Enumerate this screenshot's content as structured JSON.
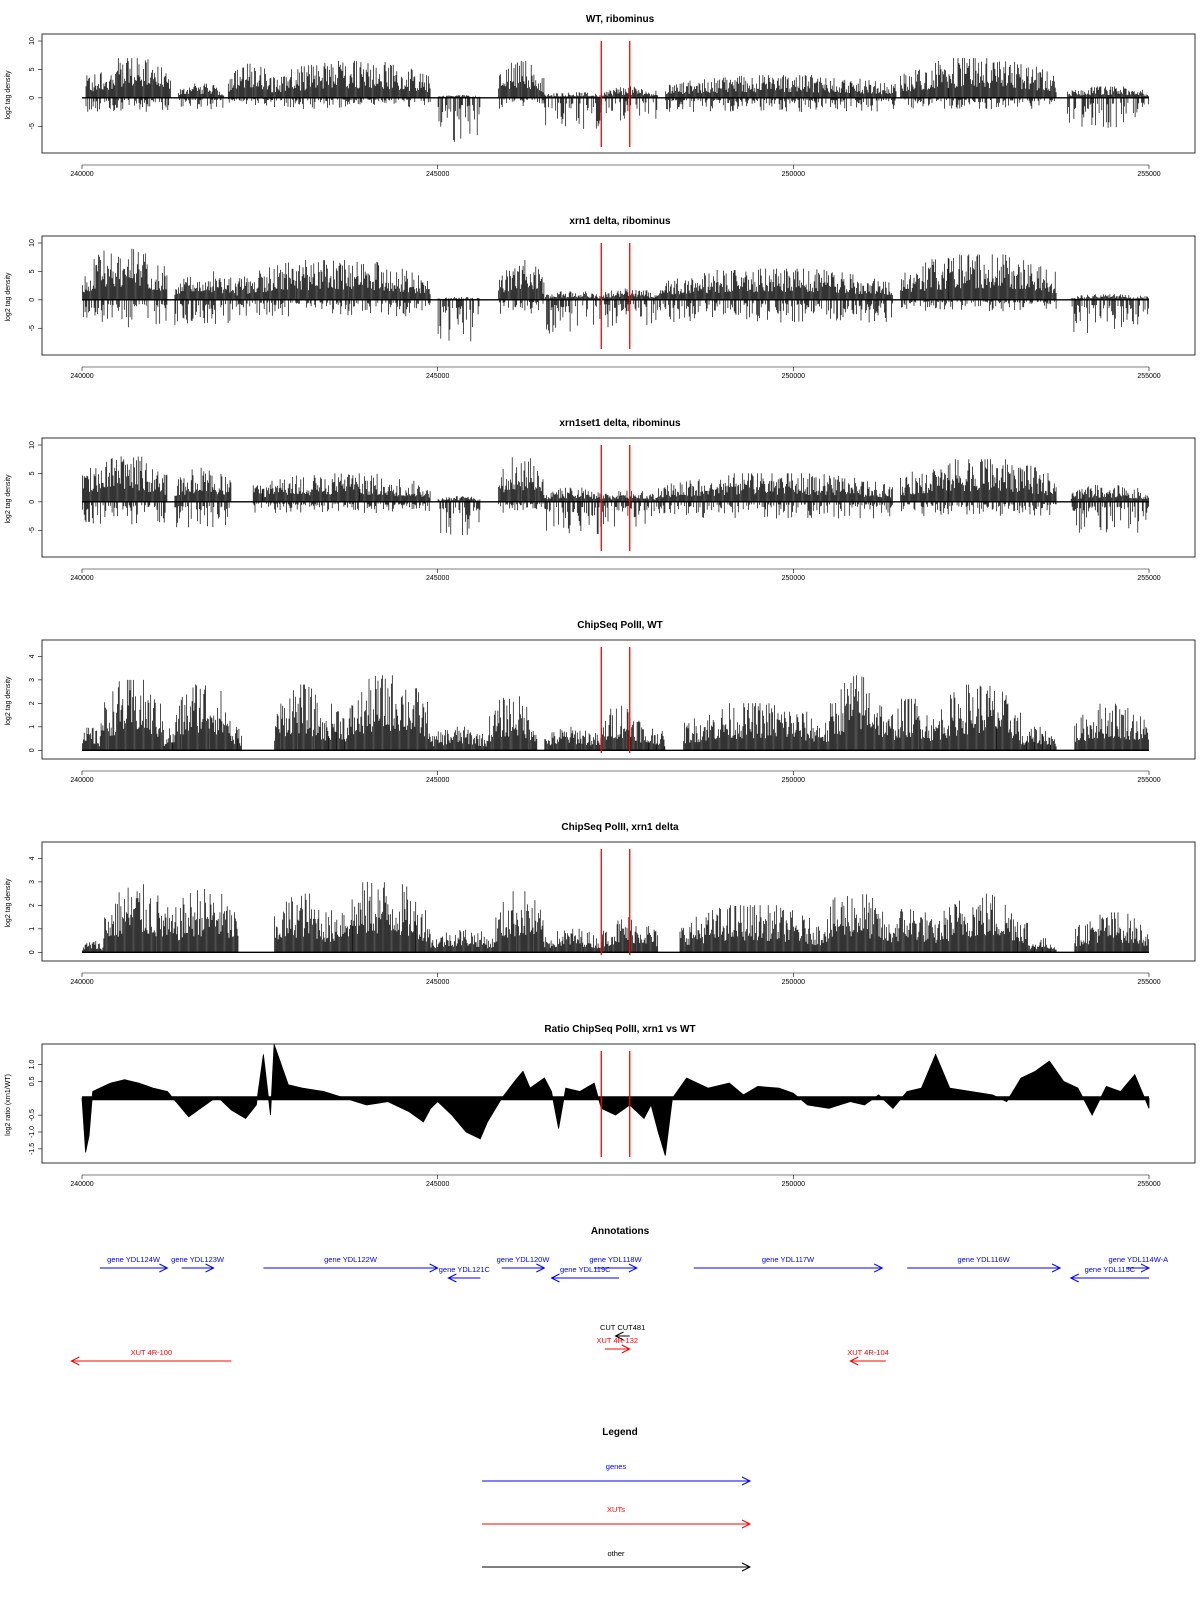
{
  "colors": {
    "gene": "#0000ff",
    "xut": "#ff0000",
    "other": "#000000",
    "marker": "#ff0000",
    "signal": "#000000"
  },
  "xaxis": {
    "range": [
      240000,
      255000
    ],
    "ticks": [
      240000,
      245000,
      250000,
      255000
    ]
  },
  "markers": [
    247300,
    247700
  ],
  "chart_data": [
    {
      "type": "bar",
      "title": "WT, ribominus",
      "ylabel": "log2 tag density",
      "ylim": [
        -9,
        10
      ],
      "yticks": [
        -5,
        0,
        5,
        10
      ],
      "xlim": [
        240000,
        255000
      ],
      "segments": [
        {
          "x": [
            240050,
            240150
          ],
          "pos": 4.5,
          "neg": -3.0
        },
        {
          "x": [
            240150,
            241250
          ],
          "pos": 7.0,
          "neg": -2.5
        },
        {
          "x": [
            241350,
            242000
          ],
          "pos": 2.5,
          "neg": -2.0
        },
        {
          "x": [
            242050,
            242700
          ],
          "pos": 6.0,
          "neg": -1.5
        },
        {
          "x": [
            242700,
            244900
          ],
          "pos": 6.5,
          "neg": -2.0
        },
        {
          "x": [
            245000,
            245600
          ],
          "pos": 0.5,
          "neg": -8.5
        },
        {
          "x": [
            245850,
            246500
          ],
          "pos": 6.5,
          "neg": -2.0
        },
        {
          "x": [
            246500,
            247300
          ],
          "pos": 1.0,
          "neg": -5.5
        },
        {
          "x": [
            247300,
            248100
          ],
          "pos": 2.0,
          "neg": -4.0
        },
        {
          "x": [
            248200,
            251450
          ],
          "pos": 4.0,
          "neg": -2.5
        },
        {
          "x": [
            251500,
            253700
          ],
          "pos": 7.0,
          "neg": -2.0
        },
        {
          "x": [
            253850,
            255000
          ],
          "pos": 2.0,
          "neg": -5.5
        }
      ]
    },
    {
      "type": "bar",
      "title": "xrn1 delta, ribominus",
      "ylabel": "log2 tag density",
      "ylim": [
        -9,
        10
      ],
      "yticks": [
        -5,
        0,
        5,
        10
      ],
      "xlim": [
        240000,
        255000
      ],
      "segments": [
        {
          "x": [
            240000,
            241200
          ],
          "pos": 9.0,
          "neg": -5.0
        },
        {
          "x": [
            241300,
            242200
          ],
          "pos": 5.0,
          "neg": -4.5
        },
        {
          "x": [
            242200,
            244900
          ],
          "pos": 7.0,
          "neg": -3.0
        },
        {
          "x": [
            245000,
            245600
          ],
          "pos": 0.5,
          "neg": -7.5
        },
        {
          "x": [
            245850,
            246500
          ],
          "pos": 7.0,
          "neg": -2.5
        },
        {
          "x": [
            246500,
            247300
          ],
          "pos": 1.5,
          "neg": -6.0
        },
        {
          "x": [
            247300,
            248100
          ],
          "pos": 2.0,
          "neg": -5.0
        },
        {
          "x": [
            248100,
            251400
          ],
          "pos": 5.5,
          "neg": -4.0
        },
        {
          "x": [
            251500,
            253700
          ],
          "pos": 8.0,
          "neg": -2.0
        },
        {
          "x": [
            253900,
            255000
          ],
          "pos": 1.0,
          "neg": -6.0
        }
      ]
    },
    {
      "type": "bar",
      "title": "xrn1set1 delta, ribominus",
      "ylabel": "log2 tag density",
      "ylim": [
        -9,
        10
      ],
      "yticks": [
        -5,
        0,
        5,
        10
      ],
      "xlim": [
        240000,
        255000
      ],
      "segments": [
        {
          "x": [
            240000,
            241200
          ],
          "pos": 8.0,
          "neg": -4.0
        },
        {
          "x": [
            241300,
            242100
          ],
          "pos": 6.0,
          "neg": -5.0
        },
        {
          "x": [
            242400,
            244900
          ],
          "pos": 5.0,
          "neg": -2.0
        },
        {
          "x": [
            245000,
            245600
          ],
          "pos": 1.0,
          "neg": -6.5
        },
        {
          "x": [
            245850,
            246500
          ],
          "pos": 8.0,
          "neg": -2.0
        },
        {
          "x": [
            246500,
            247300
          ],
          "pos": 2.5,
          "neg": -6.0
        },
        {
          "x": [
            247300,
            248100
          ],
          "pos": 2.0,
          "neg": -4.5
        },
        {
          "x": [
            248100,
            251400
          ],
          "pos": 5.0,
          "neg": -3.0
        },
        {
          "x": [
            251500,
            253700
          ],
          "pos": 7.5,
          "neg": -2.5
        },
        {
          "x": [
            253900,
            255000
          ],
          "pos": 3.0,
          "neg": -5.5
        }
      ]
    },
    {
      "type": "bar",
      "title": "ChipSeq PolII, WT",
      "ylabel": "log2 tag density",
      "ylim": [
        -0.2,
        4.4
      ],
      "yticks": [
        0,
        1,
        2,
        3,
        4
      ],
      "xlim": [
        240000,
        255000
      ],
      "segments": [
        {
          "x": [
            240000,
            240250
          ],
          "pos": 1.0
        },
        {
          "x": [
            240250,
            241150
          ],
          "pos": 3.0
        },
        {
          "x": [
            241150,
            241300
          ],
          "pos": 1.0
        },
        {
          "x": [
            241300,
            242100
          ],
          "pos": 3.0
        },
        {
          "x": [
            242100,
            242250
          ],
          "pos": 1.0
        },
        {
          "x": [
            242700,
            243400
          ],
          "pos": 2.8
        },
        {
          "x": [
            243400,
            243750
          ],
          "pos": 2.0
        },
        {
          "x": [
            243750,
            244900
          ],
          "pos": 3.2
        },
        {
          "x": [
            244900,
            245700
          ],
          "pos": 1.0
        },
        {
          "x": [
            245700,
            246400
          ],
          "pos": 2.3
        },
        {
          "x": [
            246500,
            247300
          ],
          "pos": 1.0
        },
        {
          "x": [
            247300,
            247900
          ],
          "pos": 2.0
        },
        {
          "x": [
            247900,
            248200
          ],
          "pos": 1.0
        },
        {
          "x": [
            248450,
            250500
          ],
          "pos": 2.0
        },
        {
          "x": [
            250500,
            251300
          ],
          "pos": 3.2
        },
        {
          "x": [
            251300,
            252000
          ],
          "pos": 2.2
        },
        {
          "x": [
            252000,
            253200
          ],
          "pos": 2.8
        },
        {
          "x": [
            253200,
            253700
          ],
          "pos": 1.0
        },
        {
          "x": [
            253950,
            255000
          ],
          "pos": 2.0
        }
      ]
    },
    {
      "type": "bar",
      "title": "ChipSeq PolII, xrn1 delta",
      "ylabel": "log2 tag density",
      "ylim": [
        -0.2,
        4.4
      ],
      "yticks": [
        0,
        1,
        2,
        3,
        4
      ],
      "xlim": [
        240000,
        255000
      ],
      "segments": [
        {
          "x": [
            240000,
            240300
          ],
          "pos": 0.5
        },
        {
          "x": [
            240300,
            241250
          ],
          "pos": 2.9
        },
        {
          "x": [
            241250,
            242200
          ],
          "pos": 2.7
        },
        {
          "x": [
            242700,
            243500
          ],
          "pos": 2.5
        },
        {
          "x": [
            243500,
            244900
          ],
          "pos": 3.0
        },
        {
          "x": [
            244900,
            245800
          ],
          "pos": 1.0
        },
        {
          "x": [
            245800,
            246500
          ],
          "pos": 2.6
        },
        {
          "x": [
            246500,
            247300
          ],
          "pos": 1.0
        },
        {
          "x": [
            247300,
            248100
          ],
          "pos": 1.5
        },
        {
          "x": [
            248400,
            250400
          ],
          "pos": 2.0
        },
        {
          "x": [
            250400,
            251300
          ],
          "pos": 2.6
        },
        {
          "x": [
            251300,
            252000
          ],
          "pos": 2.0
        },
        {
          "x": [
            252000,
            253300
          ],
          "pos": 2.5
        },
        {
          "x": [
            253300,
            253700
          ],
          "pos": 0.6
        },
        {
          "x": [
            253950,
            255000
          ],
          "pos": 1.7
        }
      ]
    },
    {
      "type": "area",
      "title": "Ratio ChipSeq PolII, xrn1 vs WT",
      "ylabel": "log2 ratio (xrn1/WT)",
      "ylim": [
        -1.8,
        1.4
      ],
      "yticks": [
        -1.5,
        -1.0,
        -0.5,
        0.5,
        1.0
      ],
      "ytick_labels": [
        "-1.5",
        "-1.0",
        "-0.5",
        "0.5",
        "1.0"
      ],
      "xlim": [
        240000,
        255000
      ],
      "baseline": 0,
      "x": [
        240000,
        240050,
        240100,
        240150,
        240250,
        240400,
        240600,
        240800,
        241000,
        241200,
        241400,
        241500,
        241700,
        241900,
        242100,
        242300,
        242450,
        242550,
        242650,
        242700,
        242900,
        243100,
        243400,
        243700,
        244000,
        244300,
        244600,
        244800,
        244900,
        245000,
        245200,
        245400,
        245600,
        245700,
        245900,
        246100,
        246200,
        246300,
        246500,
        246600,
        246700,
        246800,
        247000,
        247200,
        247300,
        247500,
        247700,
        247900,
        248000,
        248100,
        248200,
        248300,
        248500,
        248800,
        249100,
        249300,
        249500,
        249800,
        250000,
        250200,
        250500,
        250800,
        251000,
        251200,
        251400,
        251600,
        251800,
        252000,
        252200,
        252500,
        252800,
        253000,
        253200,
        253400,
        253600,
        253800,
        254000,
        254200,
        254400,
        254600,
        254800,
        255000
      ],
      "y": [
        0,
        -1.6,
        -1.1,
        0.2,
        0.3,
        0.45,
        0.55,
        0.45,
        0.3,
        0.2,
        -0.3,
        -0.55,
        -0.25,
        0.05,
        -0.35,
        -0.6,
        -0.2,
        1.3,
        -0.5,
        1.6,
        0.4,
        0.3,
        0.2,
        0.0,
        -0.2,
        -0.1,
        -0.4,
        -0.7,
        -0.3,
        -0.1,
        -0.5,
        -1.0,
        -1.2,
        -0.7,
        0.0,
        0.55,
        0.8,
        0.3,
        0.6,
        0.2,
        -0.9,
        0.3,
        0.2,
        0.45,
        -0.3,
        -0.5,
        -0.2,
        -0.6,
        -0.2,
        -1.0,
        -1.7,
        0.0,
        0.6,
        0.3,
        0.45,
        0.1,
        0.35,
        0.3,
        0.15,
        -0.2,
        -0.3,
        -0.1,
        -0.2,
        0.1,
        -0.3,
        0.2,
        0.3,
        1.3,
        0.3,
        0.2,
        0.1,
        -0.1,
        0.6,
        0.8,
        1.1,
        0.5,
        0.3,
        -0.5,
        0.35,
        0.2,
        0.7,
        -0.3
      ]
    }
  ],
  "annotations": {
    "title": "Annotations",
    "genes": [
      {
        "label": "gene YDL124W",
        "start": 240250,
        "end": 241200,
        "strand": "+",
        "row": 0
      },
      {
        "label": "gene YDL123W",
        "start": 241400,
        "end": 241850,
        "strand": "+",
        "row": 0
      },
      {
        "label": "gene YDL122W",
        "start": 242550,
        "end": 245000,
        "strand": "+",
        "row": 0
      },
      {
        "label": "gene YDL121C",
        "start": 245150,
        "end": 245600,
        "strand": "-",
        "row": 1
      },
      {
        "label": "gene YDL120W",
        "start": 245900,
        "end": 246500,
        "strand": "+",
        "row": 0
      },
      {
        "label": "gene YDL119C",
        "start": 246600,
        "end": 247550,
        "strand": "-",
        "row": 1
      },
      {
        "label": "gene YDL118W",
        "start": 247200,
        "end": 247800,
        "strand": "+",
        "row": 0
      },
      {
        "label": "gene YDL117W",
        "start": 248600,
        "end": 251250,
        "strand": "+",
        "row": 0
      },
      {
        "label": "gene YDL116W",
        "start": 251600,
        "end": 253750,
        "strand": "+",
        "row": 0
      },
      {
        "label": "gene YDL115C",
        "start": 253900,
        "end": 255000,
        "strand": "-",
        "row": 1
      },
      {
        "label": "gene YDL114W-A",
        "start": 254700,
        "end": 255000,
        "strand": "+",
        "row": 0
      }
    ],
    "xuts": [
      {
        "label": "XUT 4R-100",
        "start": 239850,
        "end": 242100,
        "strand": "-",
        "row": 4
      },
      {
        "label": "XUT 4R-132",
        "start": 247350,
        "end": 247700,
        "strand": "+",
        "row": 3
      },
      {
        "label": "XUT 4R-104",
        "start": 250800,
        "end": 251300,
        "strand": "-",
        "row": 4
      }
    ],
    "other": [
      {
        "label": "CUT CUT481",
        "start": 247500,
        "end": 247700,
        "strand": "-",
        "row": 2
      }
    ]
  },
  "legend": {
    "title": "Legend",
    "entries": [
      {
        "label": "genes",
        "color": "#0000ff"
      },
      {
        "label": "XUTs",
        "color": "#ff0000"
      },
      {
        "label": "other",
        "color": "#000000"
      }
    ]
  }
}
